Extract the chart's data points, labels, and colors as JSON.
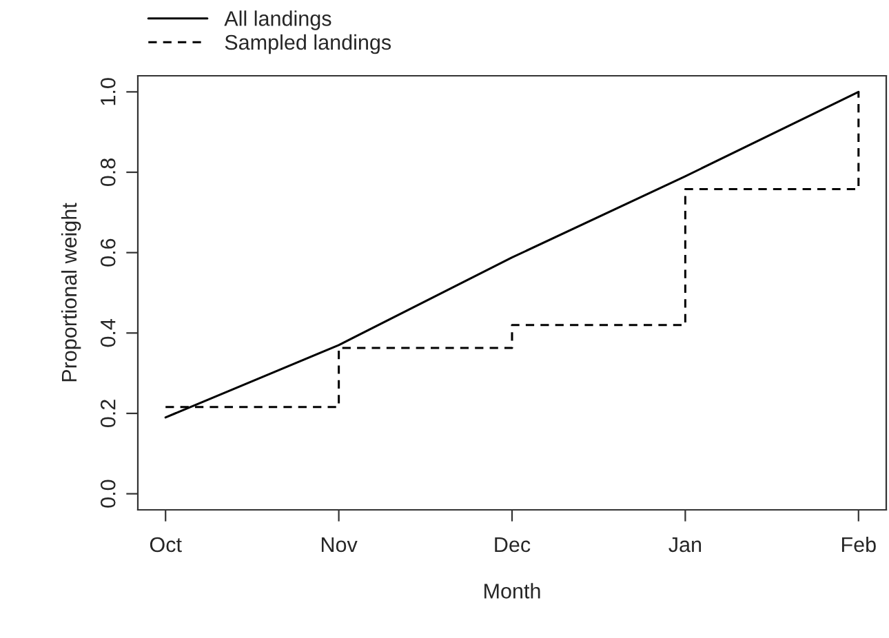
{
  "chart_data": {
    "type": "line",
    "xlabel": "Month",
    "ylabel": "Proportional weight",
    "categories": [
      "Oct",
      "Nov",
      "Dec",
      "Jan",
      "Feb"
    ],
    "series": [
      {
        "name": "All landings",
        "color": "#000000",
        "line_style": "solid",
        "values": [
          0.19,
          0.37,
          0.588,
          0.79,
          1.0
        ]
      },
      {
        "name": "Sampled landings",
        "color": "#000000",
        "type": "step",
        "line_style": "dashed",
        "values": [
          0.216,
          0.363,
          0.42,
          0.758,
          1.0
        ]
      }
    ],
    "ylim": [
      -0.04,
      1.04
    ],
    "yticks": [
      {
        "value": 0,
        "label": "0.0"
      },
      0.2,
      0.4,
      0.6,
      0.8,
      {
        "value": 1,
        "label": "1.0"
      }
    ],
    "legend": "top left",
    "grid": false,
    "marker": "none"
  }
}
